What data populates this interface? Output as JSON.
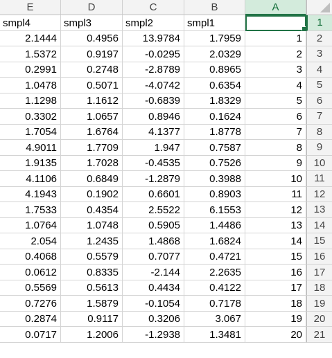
{
  "columns": [
    "E",
    "D",
    "C",
    "B",
    "A"
  ],
  "header_row": [
    "smpl4",
    "smpl3",
    "smpl2",
    "smpl1",
    ""
  ],
  "row_numbers": [
    "1",
    "2",
    "3",
    "4",
    "5",
    "6",
    "7",
    "8",
    "9",
    "10",
    "11",
    "12",
    "13",
    "14",
    "15",
    "16",
    "17",
    "18",
    "19",
    "20",
    "21"
  ],
  "rows": [
    [
      "2.1444",
      "0.4956",
      "13.9784",
      "1.7959",
      "1"
    ],
    [
      "1.5372",
      "0.9197",
      "-0.0295",
      "2.0329",
      "2"
    ],
    [
      "0.2991",
      "0.2748",
      "-2.8789",
      "0.8965",
      "3"
    ],
    [
      "1.0478",
      "0.5071",
      "-4.0742",
      "0.6354",
      "4"
    ],
    [
      "1.1298",
      "1.1612",
      "-0.6839",
      "1.8329",
      "5"
    ],
    [
      "0.3302",
      "1.0657",
      "0.8946",
      "0.1624",
      "6"
    ],
    [
      "1.7054",
      "1.6764",
      "4.1377",
      "1.8778",
      "7"
    ],
    [
      "4.9011",
      "1.7709",
      "1.947",
      "0.7587",
      "8"
    ],
    [
      "1.9135",
      "1.7028",
      "-0.4535",
      "0.7526",
      "9"
    ],
    [
      "4.1106",
      "0.6849",
      "-1.2879",
      "0.3988",
      "10"
    ],
    [
      "4.1943",
      "0.1902",
      "0.6601",
      "0.8903",
      "11"
    ],
    [
      "1.7533",
      "0.4354",
      "2.5522",
      "6.1553",
      "12"
    ],
    [
      "1.0764",
      "1.0748",
      "0.5905",
      "1.4486",
      "13"
    ],
    [
      "2.054",
      "1.2435",
      "1.4868",
      "1.6824",
      "14"
    ],
    [
      "0.4068",
      "0.5579",
      "0.7077",
      "0.4721",
      "15"
    ],
    [
      "0.0612",
      "0.8335",
      "-2.144",
      "2.2635",
      "16"
    ],
    [
      "0.5569",
      "0.5613",
      "0.4434",
      "0.4122",
      "17"
    ],
    [
      "0.7276",
      "1.5879",
      "-0.1054",
      "0.7178",
      "18"
    ],
    [
      "0.2874",
      "0.9117",
      "0.3206",
      "3.067",
      "19"
    ],
    [
      "0.0717",
      "1.2006",
      "-1.2938",
      "1.3481",
      "20"
    ]
  ],
  "active_cell": "A1",
  "colors": {
    "accent": "#217346",
    "header_bg": "#f3f3f3",
    "selected_header_bg": "#d3ebdc",
    "gridline": "#d4d4d4"
  }
}
